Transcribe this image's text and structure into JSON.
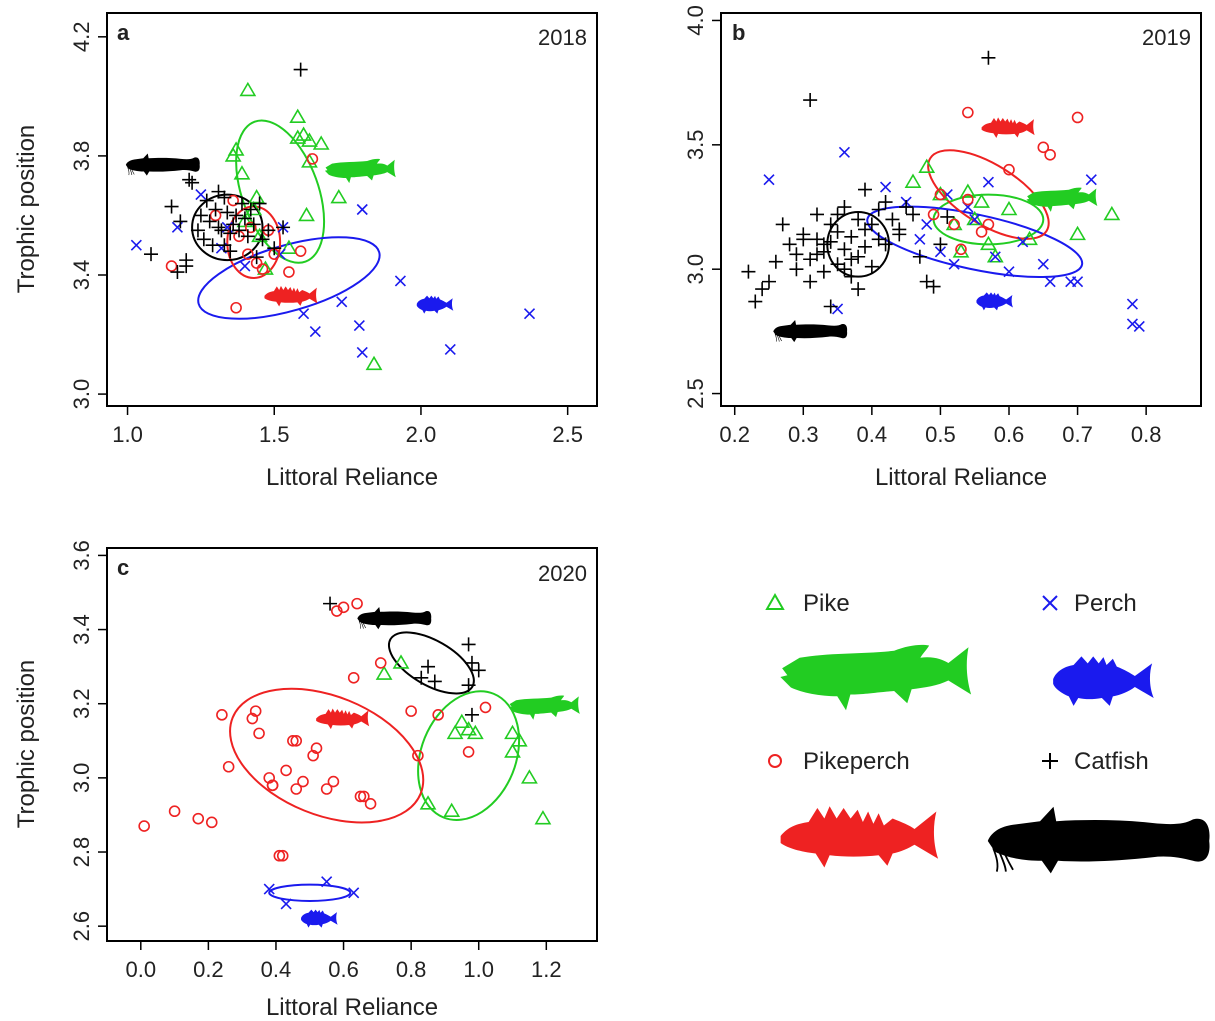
{
  "colors": {
    "Pike": "#22cc22",
    "Perch": "#1a1aee",
    "Pikeperch": "#ee2222",
    "Catfish": "#000000"
  },
  "legend": {
    "items": [
      {
        "name": "Pike",
        "marker": "triangle",
        "icon": "pike-fish-icon"
      },
      {
        "name": "Perch",
        "marker": "x",
        "icon": "perch-fish-icon"
      },
      {
        "name": "Pikeperch",
        "marker": "circle",
        "icon": "pikeperch-fish-icon"
      },
      {
        "name": "Catfish",
        "marker": "plus",
        "icon": "catfish-fish-icon"
      }
    ]
  },
  "chart_data": [
    {
      "type": "scatter",
      "panel": "a",
      "year": "2018",
      "xlabel": "Littoral Reliance",
      "ylabel": "Trophic position",
      "xlim": [
        0.93,
        2.6
      ],
      "ylim": [
        2.96,
        4.28
      ],
      "xticks": [
        "1.0",
        "1.5",
        "2.0",
        "2.5"
      ],
      "yticks": [
        "3.0",
        "3.4",
        "3.8",
        "4.2"
      ],
      "series": [
        {
          "name": "Pike",
          "marker": "triangle",
          "x": [
            1.41,
            1.37,
            1.36,
            1.39,
            1.44,
            1.58,
            1.6,
            1.62,
            1.66,
            1.58,
            1.61,
            1.72,
            1.62,
            1.55,
            1.47,
            1.43,
            1.84,
            1.45,
            1.4
          ],
          "y": [
            4.02,
            3.82,
            3.8,
            3.74,
            3.66,
            3.93,
            3.87,
            3.85,
            3.84,
            3.86,
            3.6,
            3.66,
            3.78,
            3.49,
            3.42,
            3.62,
            3.1,
            3.53,
            3.58
          ],
          "ellipse": {
            "cx": 1.52,
            "cy": 3.68,
            "rx": 0.13,
            "ry": 0.25,
            "angle": 20
          }
        },
        {
          "name": "Perch",
          "marker": "x",
          "x": [
            1.03,
            1.17,
            1.25,
            1.32,
            1.34,
            1.52,
            1.6,
            1.64,
            1.73,
            1.8,
            1.79,
            1.8,
            1.93,
            2.1,
            2.37,
            1.53,
            1.4
          ],
          "y": [
            3.5,
            3.56,
            3.67,
            3.49,
            3.56,
            3.47,
            3.27,
            3.21,
            3.31,
            3.62,
            3.23,
            3.14,
            3.38,
            3.15,
            3.27,
            3.56,
            3.43
          ],
          "ellipse": {
            "cx": 1.55,
            "cy": 3.39,
            "rx": 0.32,
            "ry": 0.11,
            "angle": 16
          }
        },
        {
          "name": "Pikeperch",
          "marker": "circle",
          "x": [
            1.15,
            1.37,
            1.36,
            1.41,
            1.44,
            1.46,
            1.5,
            1.55,
            1.42,
            1.3,
            1.63,
            1.59,
            1.48,
            1.38
          ],
          "y": [
            3.43,
            3.29,
            3.65,
            3.47,
            3.44,
            3.42,
            3.47,
            3.41,
            3.56,
            3.6,
            3.79,
            3.48,
            3.55,
            3.53
          ],
          "ellipse": {
            "cx": 1.43,
            "cy": 3.51,
            "rx": 0.09,
            "ry": 0.12,
            "angle": 0
          }
        },
        {
          "name": "Catfish",
          "marker": "plus",
          "x": [
            1.08,
            1.15,
            1.18,
            1.2,
            1.21,
            1.22,
            1.24,
            1.25,
            1.26,
            1.27,
            1.28,
            1.29,
            1.3,
            1.31,
            1.32,
            1.33,
            1.33,
            1.34,
            1.35,
            1.36,
            1.37,
            1.38,
            1.39,
            1.4,
            1.41,
            1.43,
            1.44,
            1.45,
            1.46,
            1.48,
            1.5,
            1.53,
            1.59,
            1.2,
            1.17,
            1.35,
            1.31,
            1.42
          ],
          "y": [
            3.47,
            3.63,
            3.58,
            3.43,
            3.72,
            3.71,
            3.55,
            3.6,
            3.52,
            3.65,
            3.58,
            3.5,
            3.62,
            3.56,
            3.55,
            3.66,
            3.5,
            3.61,
            3.54,
            3.57,
            3.6,
            3.55,
            3.64,
            3.59,
            3.53,
            3.57,
            3.46,
            3.64,
            3.52,
            3.55,
            3.49,
            3.56,
            4.09,
            3.45,
            3.41,
            3.48,
            3.68,
            3.62
          ],
          "ellipse": {
            "cx": 1.34,
            "cy": 3.56,
            "rx": 0.12,
            "ry": 0.11,
            "angle": 0
          }
        }
      ],
      "fish_icons": [
        {
          "name": "Catfish",
          "x": 1.12,
          "y": 3.77
        },
        {
          "name": "Pike",
          "x": 1.8,
          "y": 3.75
        },
        {
          "name": "Pikeperch",
          "x": 1.56,
          "y": 3.33
        },
        {
          "name": "Perch",
          "x": 2.05,
          "y": 3.3
        }
      ]
    },
    {
      "type": "scatter",
      "panel": "b",
      "year": "2019",
      "xlabel": "Littoral Reliance",
      "ylabel": "",
      "xlim": [
        0.18,
        0.88
      ],
      "ylim": [
        2.45,
        4.03
      ],
      "xticks": [
        "0.2",
        "0.3",
        "0.4",
        "0.5",
        "0.6",
        "0.7",
        "0.8"
      ],
      "yticks": [
        "2.5",
        "3.0",
        "3.5",
        "4.0"
      ],
      "series": [
        {
          "name": "Pike",
          "marker": "triangle",
          "x": [
            0.46,
            0.48,
            0.5,
            0.52,
            0.54,
            0.56,
            0.57,
            0.58,
            0.6,
            0.63,
            0.75,
            0.7,
            0.53,
            0.55
          ],
          "y": [
            3.35,
            3.41,
            3.3,
            3.18,
            3.31,
            3.27,
            3.1,
            3.05,
            3.24,
            3.12,
            3.22,
            3.14,
            3.07,
            3.2
          ],
          "ellipse": {
            "cx": 0.57,
            "cy": 3.2,
            "rx": 0.08,
            "ry": 0.1,
            "angle": 0
          }
        },
        {
          "name": "Perch",
          "marker": "x",
          "x": [
            0.25,
            0.35,
            0.36,
            0.42,
            0.45,
            0.48,
            0.5,
            0.52,
            0.55,
            0.57,
            0.58,
            0.6,
            0.62,
            0.65,
            0.66,
            0.69,
            0.7,
            0.72,
            0.78,
            0.78,
            0.79,
            0.47,
            0.54,
            0.51
          ],
          "y": [
            3.36,
            2.84,
            3.47,
            3.33,
            3.27,
            3.18,
            3.07,
            3.02,
            3.2,
            3.35,
            3.05,
            2.99,
            3.11,
            3.02,
            2.95,
            2.95,
            2.95,
            3.36,
            2.86,
            2.78,
            2.77,
            3.12,
            3.25,
            3.3
          ],
          "ellipse": {
            "cx": 0.55,
            "cy": 3.11,
            "rx": 0.16,
            "ry": 0.11,
            "angle": -12
          }
        },
        {
          "name": "Pikeperch",
          "marker": "circle",
          "x": [
            0.49,
            0.5,
            0.52,
            0.53,
            0.54,
            0.56,
            0.57,
            0.54,
            0.6,
            0.65,
            0.66,
            0.7
          ],
          "y": [
            3.22,
            3.3,
            3.18,
            3.08,
            3.63,
            3.15,
            3.18,
            3.28,
            3.4,
            3.49,
            3.46,
            3.61
          ],
          "ellipse": {
            "cx": 0.57,
            "cy": 3.3,
            "rx": 0.1,
            "ry": 0.12,
            "angle": -32
          }
        },
        {
          "name": "Catfish",
          "marker": "plus",
          "x": [
            0.22,
            0.23,
            0.24,
            0.25,
            0.26,
            0.27,
            0.28,
            0.29,
            0.3,
            0.31,
            0.31,
            0.32,
            0.32,
            0.33,
            0.33,
            0.34,
            0.34,
            0.35,
            0.35,
            0.36,
            0.36,
            0.37,
            0.37,
            0.38,
            0.38,
            0.39,
            0.39,
            0.4,
            0.4,
            0.41,
            0.41,
            0.42,
            0.43,
            0.44,
            0.45,
            0.46,
            0.47,
            0.48,
            0.49,
            0.5,
            0.51,
            0.31,
            0.57,
            0.34,
            0.3,
            0.36,
            0.39,
            0.42,
            0.35,
            0.32,
            0.38,
            0.44,
            0.33,
            0.37,
            0.29
          ],
          "y": [
            2.99,
            2.87,
            2.92,
            2.95,
            3.03,
            3.18,
            3.1,
            3.06,
            3.14,
            3.04,
            3.68,
            3.12,
            3.22,
            3.07,
            2.99,
            3.18,
            3.11,
            3.02,
            3.15,
            3.08,
            3.25,
            2.97,
            3.13,
            3.2,
            3.05,
            3.09,
            3.32,
            3.18,
            3.01,
            3.12,
            3.24,
            3.1,
            3.2,
            3.14,
            3.25,
            3.22,
            3.05,
            2.95,
            2.93,
            3.1,
            3.21,
            2.95,
            3.85,
            2.85,
            3.12,
            3.0,
            3.16,
            3.27,
            3.22,
            3.06,
            2.92,
            3.16,
            3.1,
            3.04,
            3.0
          ],
          "ellipse": {
            "cx": 0.38,
            "cy": 3.1,
            "rx": 0.045,
            "ry": 0.13,
            "angle": 0
          }
        }
      ],
      "fish_icons": [
        {
          "name": "Catfish",
          "x": 0.31,
          "y": 2.75
        },
        {
          "name": "Pikeperch",
          "x": 0.6,
          "y": 3.57
        },
        {
          "name": "Pike",
          "x": 0.68,
          "y": 3.28
        },
        {
          "name": "Perch",
          "x": 0.58,
          "y": 2.87
        }
      ]
    },
    {
      "type": "scatter",
      "panel": "c",
      "year": "2020",
      "xlabel": "Littoral Reliance",
      "ylabel": "Trophic position",
      "xlim": [
        -0.1,
        1.35
      ],
      "ylim": [
        2.56,
        3.62
      ],
      "xticks": [
        "0.0",
        "0.2",
        "0.4",
        "0.6",
        "0.8",
        "1.0",
        "1.2"
      ],
      "yticks": [
        "2.6",
        "2.8",
        "3.0",
        "3.2",
        "3.4",
        "3.6"
      ],
      "series": [
        {
          "name": "Pike",
          "marker": "triangle",
          "x": [
            0.72,
            0.77,
            0.85,
            0.92,
            0.93,
            0.95,
            0.97,
            0.99,
            1.1,
            1.12,
            1.1,
            1.15,
            1.19
          ],
          "y": [
            3.28,
            3.31,
            2.93,
            2.91,
            3.12,
            3.15,
            3.13,
            3.12,
            3.07,
            3.1,
            3.12,
            3.0,
            2.89
          ],
          "ellipse": {
            "cx": 0.97,
            "cy": 3.06,
            "rx": 0.14,
            "ry": 0.18,
            "angle": -22
          }
        },
        {
          "name": "Perch",
          "marker": "x",
          "x": [
            0.38,
            0.43,
            0.55,
            0.63
          ],
          "y": [
            2.7,
            2.66,
            2.72,
            2.69
          ],
          "ellipse": {
            "cx": 0.5,
            "cy": 2.69,
            "rx": 0.12,
            "ry": 0.022,
            "angle": 0
          }
        },
        {
          "name": "Pikeperch",
          "marker": "circle",
          "x": [
            0.01,
            0.1,
            0.17,
            0.21,
            0.24,
            0.26,
            0.33,
            0.34,
            0.35,
            0.38,
            0.39,
            0.42,
            0.45,
            0.46,
            0.48,
            0.51,
            0.52,
            0.55,
            0.57,
            0.6,
            0.63,
            0.64,
            0.65,
            0.66,
            0.68,
            0.71,
            0.8,
            0.82,
            0.88,
            0.97,
            1.02,
            0.58,
            0.41,
            0.43,
            0.39,
            0.46
          ],
          "y": [
            2.87,
            2.91,
            2.89,
            2.88,
            3.17,
            3.03,
            3.16,
            3.18,
            3.12,
            3.0,
            2.98,
            2.79,
            3.1,
            2.97,
            2.99,
            3.06,
            3.08,
            2.97,
            2.99,
            3.46,
            3.27,
            3.47,
            2.95,
            2.95,
            2.93,
            3.31,
            3.18,
            3.06,
            3.17,
            3.07,
            3.19,
            3.45,
            2.79,
            3.02,
            2.98,
            3.1
          ],
          "ellipse": {
            "cx": 0.55,
            "cy": 3.06,
            "rx": 0.3,
            "ry": 0.16,
            "angle": -22
          }
        },
        {
          "name": "Catfish",
          "marker": "plus",
          "x": [
            0.56,
            0.83,
            0.85,
            0.87,
            0.97,
            0.98,
            1.0,
            0.97,
            0.98
          ],
          "y": [
            3.47,
            3.27,
            3.3,
            3.26,
            3.36,
            3.31,
            3.29,
            3.25,
            3.17
          ],
          "ellipse": {
            "cx": 0.86,
            "cy": 3.31,
            "rx": 0.14,
            "ry": 0.06,
            "angle": -30
          }
        }
      ],
      "fish_icons": [
        {
          "name": "Catfish",
          "x": 0.75,
          "y": 3.43
        },
        {
          "name": "Pike",
          "x": 1.2,
          "y": 3.19
        },
        {
          "name": "Pikeperch",
          "x": 0.6,
          "y": 3.16
        },
        {
          "name": "Perch",
          "x": 0.53,
          "y": 2.62
        }
      ]
    }
  ]
}
